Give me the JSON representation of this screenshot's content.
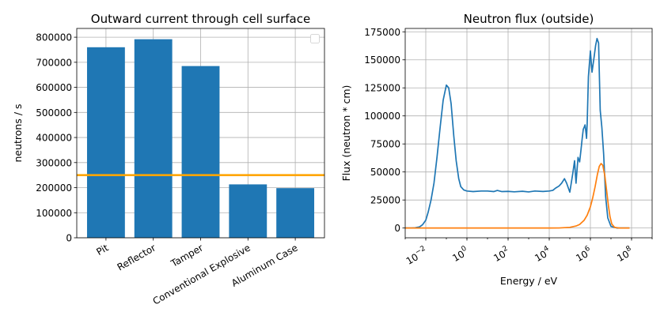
{
  "chart_data": [
    {
      "type": "bar",
      "title": "Outward current through cell surface",
      "xlabel": "",
      "ylabel": "neutrons / s",
      "categories": [
        "Pit",
        "Reflector",
        "Tamper",
        "Conventional Explosive",
        "Aluminum Case"
      ],
      "values": [
        760000,
        792000,
        685000,
        213000,
        198000
      ],
      "ylim": [
        0,
        835000
      ],
      "yticks": [
        0,
        100000,
        200000,
        300000,
        400000,
        500000,
        600000,
        700000,
        800000
      ],
      "reference_line": {
        "y": 250000,
        "color": "#ffa500"
      },
      "bar_color": "#1f77b4",
      "grid": true,
      "legend": {
        "placement": "upper right",
        "entries": []
      }
    },
    {
      "type": "line",
      "title": "Neutron flux (outside)",
      "xlabel": "Energy / eV",
      "ylabel": "Flux (neutron * cm)",
      "x_scale": "log",
      "xlim": [
        0.001,
        1000000000.0
      ],
      "xticks": [
        {
          "value": 0.01,
          "base": "10",
          "exp": "−2"
        },
        {
          "value": 1.0,
          "base": "10",
          "exp": "0"
        },
        {
          "value": 100.0,
          "base": "10",
          "exp": "2"
        },
        {
          "value": 10000.0,
          "base": "10",
          "exp": "4"
        },
        {
          "value": 1000000.0,
          "base": "10",
          "exp": "6"
        },
        {
          "value": 100000000.0,
          "base": "10",
          "exp": "8"
        }
      ],
      "ylim": [
        -8700,
        178000
      ],
      "yticks": [
        0,
        25000,
        50000,
        75000,
        100000,
        125000,
        150000,
        175000
      ],
      "grid": true,
      "series": [
        {
          "color": "#1f77b4",
          "x": [
            0.001,
            0.002,
            0.003,
            0.005,
            0.007,
            0.01,
            0.013,
            0.018,
            0.025,
            0.035,
            0.05,
            0.07,
            0.1,
            0.13,
            0.17,
            0.23,
            0.3,
            0.4,
            0.5,
            0.7,
            1,
            2,
            5,
            10,
            20,
            30,
            50,
            100,
            200,
            500,
            1000,
            2000,
            5000,
            10000,
            15000,
            20000,
            30000,
            40000,
            55000,
            70000,
            100000,
            140000,
            170000,
            200000,
            250000,
            300000,
            350000,
            400000,
            450000,
            500000,
            550000,
            600000,
            650000,
            700000,
            800000,
            1000000,
            1200000,
            1500000,
            1800000,
            2100000,
            2500000,
            3000000,
            3600000,
            4400000,
            5500000,
            7000000,
            10000000,
            20000000,
            50000000,
            80000000
          ],
          "y": [
            0,
            0,
            200,
            1000,
            3000,
            7000,
            14000,
            25000,
            40000,
            63000,
            90000,
            114000,
            127500,
            125000,
            111000,
            82000,
            60000,
            44000,
            37000,
            34000,
            33000,
            32500,
            33000,
            33000,
            32500,
            33500,
            32500,
            32700,
            32300,
            32800,
            32200,
            33000,
            32600,
            33000,
            33600,
            35500,
            37500,
            40000,
            44000,
            40000,
            32000,
            49000,
            60000,
            40000,
            63000,
            59000,
            70000,
            80000,
            88000,
            90000,
            92000,
            86000,
            80000,
            94000,
            135000,
            158000,
            139000,
            152000,
            163000,
            169000,
            165000,
            105000,
            90000,
            66000,
            28000,
            9000,
            1500,
            0,
            0,
            0
          ]
        },
        {
          "color": "#ff7f0e",
          "x": [
            0.001,
            10000,
            30000,
            100000,
            200000,
            300000,
            500000,
            700000,
            1000000,
            1300000,
            1700000,
            2200000,
            2700000,
            3300000,
            4000000,
            5000000,
            6000000,
            7500000,
            9000000,
            11000000,
            15000000,
            25000000,
            80000000
          ],
          "y": [
            0,
            0,
            80,
            600,
            1800,
            3200,
            7000,
            11500,
            19000,
            27000,
            37000,
            48000,
            55000,
            57500,
            56000,
            47000,
            35000,
            20000,
            10000,
            3500,
            600,
            0,
            0
          ]
        }
      ]
    }
  ]
}
